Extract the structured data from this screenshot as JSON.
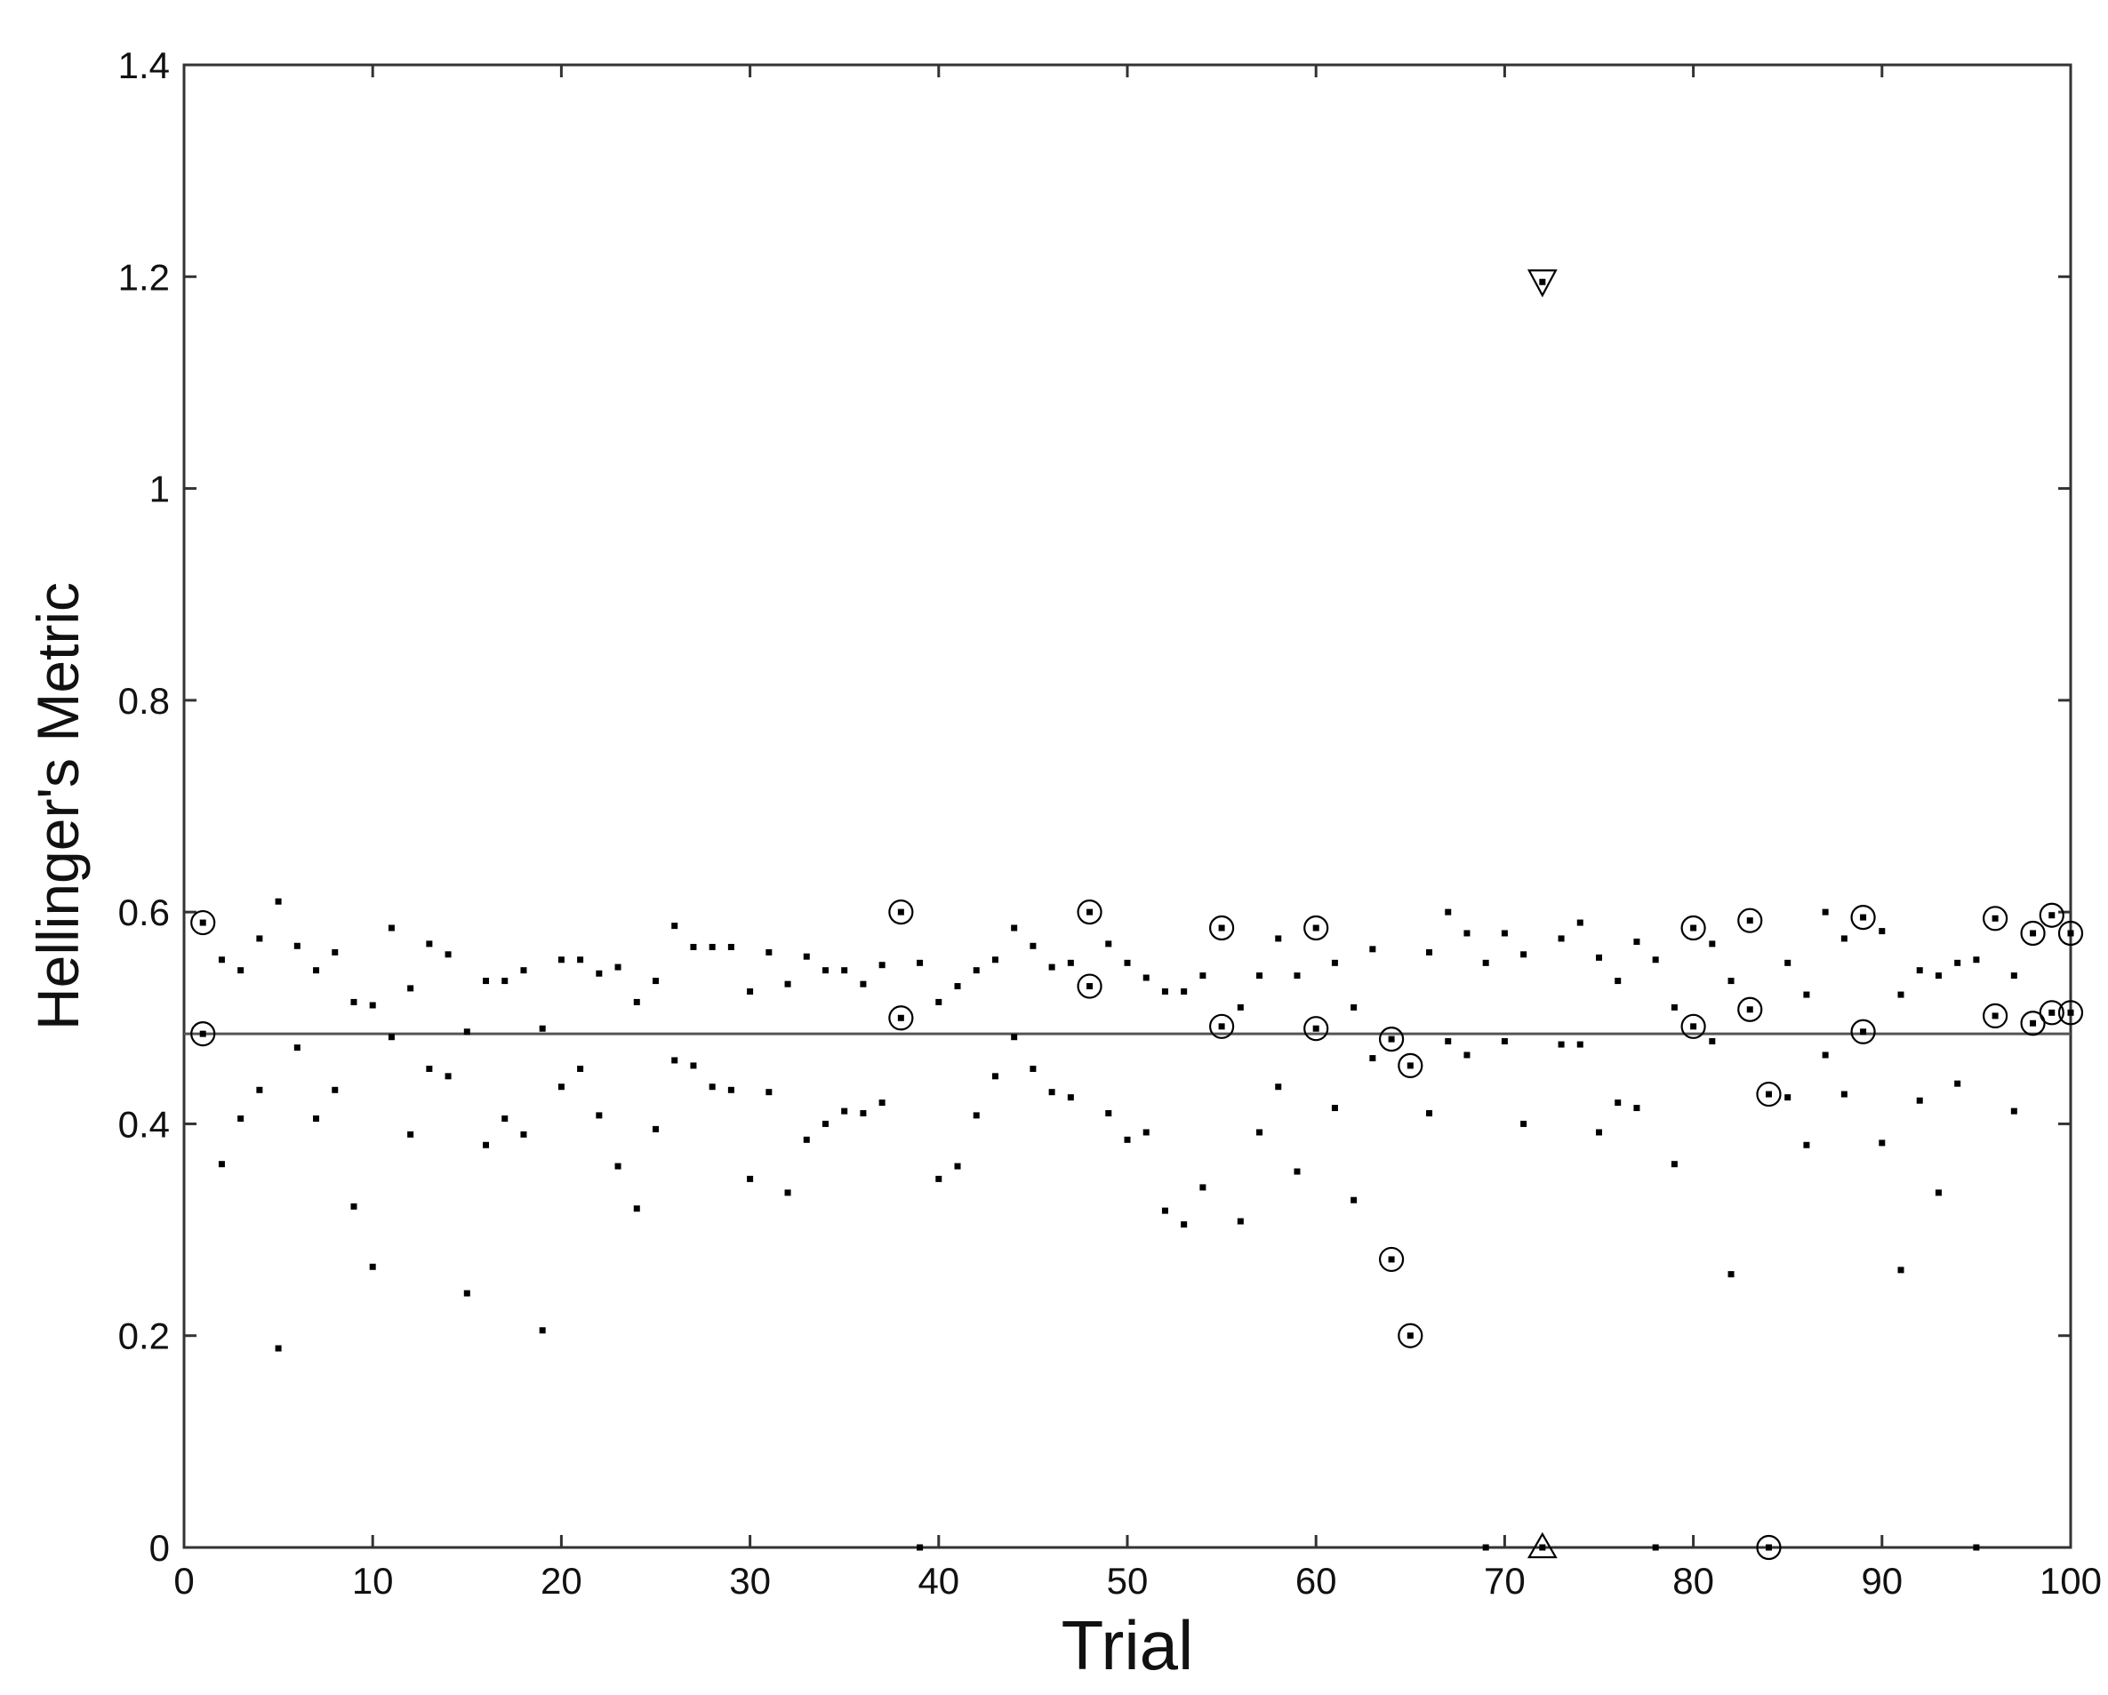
{
  "chart_data": {
    "type": "scatter",
    "title": "",
    "xlabel": "Trial",
    "ylabel": "Hellinger's Metric",
    "xlim": [
      0,
      100
    ],
    "ylim": [
      0,
      1.4
    ],
    "xticks": [
      "0",
      "10",
      "20",
      "30",
      "40",
      "50",
      "60",
      "70",
      "80",
      "90",
      "100"
    ],
    "yticks": [
      "0",
      "0.2",
      "0.4",
      "0.6",
      "0.8",
      "1",
      "1.2",
      "1.4"
    ],
    "grid": false,
    "legend": "none",
    "reference_line": {
      "y": 0.485,
      "color": "#555555"
    },
    "series": [
      {
        "marker": "dot",
        "color": "#000000",
        "points": [
          [
            1,
            0.59
          ],
          [
            1,
            0.485
          ],
          [
            2,
            0.555
          ],
          [
            2,
            0.362
          ],
          [
            3,
            0.545
          ],
          [
            3,
            0.405
          ],
          [
            4,
            0.575
          ],
          [
            4,
            0.432
          ],
          [
            5,
            0.61
          ],
          [
            5,
            0.188
          ],
          [
            6,
            0.568
          ],
          [
            6,
            0.472
          ],
          [
            7,
            0.545
          ],
          [
            7,
            0.405
          ],
          [
            8,
            0.562
          ],
          [
            8,
            0.432
          ],
          [
            9,
            0.515
          ],
          [
            9,
            0.322
          ],
          [
            10,
            0.512
          ],
          [
            10,
            0.265
          ],
          [
            11,
            0.585
          ],
          [
            11,
            0.482
          ],
          [
            12,
            0.528
          ],
          [
            12,
            0.39
          ],
          [
            13,
            0.57
          ],
          [
            13,
            0.452
          ],
          [
            14,
            0.56
          ],
          [
            14,
            0.445
          ],
          [
            15,
            0.487
          ],
          [
            15,
            0.24
          ],
          [
            16,
            0.535
          ],
          [
            16,
            0.38
          ],
          [
            17,
            0.535
          ],
          [
            17,
            0.405
          ],
          [
            18,
            0.545
          ],
          [
            18,
            0.39
          ],
          [
            19,
            0.49
          ],
          [
            19,
            0.205
          ],
          [
            20,
            0.555
          ],
          [
            20,
            0.435
          ],
          [
            21,
            0.555
          ],
          [
            21,
            0.452
          ],
          [
            22,
            0.542
          ],
          [
            22,
            0.408
          ],
          [
            23,
            0.548
          ],
          [
            23,
            0.36
          ],
          [
            24,
            0.515
          ],
          [
            24,
            0.32
          ],
          [
            25,
            0.535
          ],
          [
            25,
            0.395
          ],
          [
            26,
            0.587
          ],
          [
            26,
            0.46
          ],
          [
            27,
            0.567
          ],
          [
            27,
            0.455
          ],
          [
            28,
            0.567
          ],
          [
            28,
            0.435
          ],
          [
            29,
            0.567
          ],
          [
            29,
            0.432
          ],
          [
            30,
            0.525
          ],
          [
            30,
            0.348
          ],
          [
            31,
            0.562
          ],
          [
            31,
            0.43
          ],
          [
            32,
            0.532
          ],
          [
            32,
            0.335
          ],
          [
            33,
            0.558
          ],
          [
            33,
            0.385
          ],
          [
            34,
            0.545
          ],
          [
            34,
            0.4
          ],
          [
            35,
            0.545
          ],
          [
            35,
            0.412
          ],
          [
            36,
            0.532
          ],
          [
            36,
            0.41
          ],
          [
            37,
            0.55
          ],
          [
            37,
            0.42
          ],
          [
            38,
            0.6
          ],
          [
            38,
            0.5
          ],
          [
            39,
            0.552
          ],
          [
            39,
            0.0
          ],
          [
            40,
            0.515
          ],
          [
            40,
            0.348
          ],
          [
            41,
            0.53
          ],
          [
            41,
            0.36
          ],
          [
            42,
            0.545
          ],
          [
            42,
            0.408
          ],
          [
            43,
            0.555
          ],
          [
            43,
            0.445
          ],
          [
            44,
            0.585
          ],
          [
            44,
            0.482
          ],
          [
            45,
            0.568
          ],
          [
            45,
            0.452
          ],
          [
            46,
            0.548
          ],
          [
            46,
            0.43
          ],
          [
            47,
            0.552
          ],
          [
            47,
            0.425
          ],
          [
            48,
            0.6
          ],
          [
            48,
            0.53
          ],
          [
            49,
            0.57
          ],
          [
            49,
            0.41
          ],
          [
            50,
            0.552
          ],
          [
            50,
            0.385
          ],
          [
            51,
            0.538
          ],
          [
            51,
            0.392
          ],
          [
            52,
            0.525
          ],
          [
            52,
            0.318
          ],
          [
            53,
            0.525
          ],
          [
            53,
            0.305
          ],
          [
            54,
            0.54
          ],
          [
            54,
            0.34
          ],
          [
            55,
            0.585
          ],
          [
            55,
            0.492
          ],
          [
            56,
            0.51
          ],
          [
            56,
            0.308
          ],
          [
            57,
            0.54
          ],
          [
            57,
            0.392
          ],
          [
            58,
            0.575
          ],
          [
            58,
            0.435
          ],
          [
            59,
            0.54
          ],
          [
            59,
            0.355
          ],
          [
            60,
            0.585
          ],
          [
            60,
            0.49
          ],
          [
            61,
            0.552
          ],
          [
            61,
            0.415
          ],
          [
            62,
            0.51
          ],
          [
            62,
            0.328
          ],
          [
            63,
            0.565
          ],
          [
            63,
            0.462
          ],
          [
            64,
            0.48
          ],
          [
            64,
            0.272
          ],
          [
            65,
            0.455
          ],
          [
            65,
            0.2
          ],
          [
            66,
            0.562
          ],
          [
            66,
            0.41
          ],
          [
            67,
            0.6
          ],
          [
            67,
            0.478
          ],
          [
            68,
            0.58
          ],
          [
            68,
            0.465
          ],
          [
            69,
            0.552
          ],
          [
            69,
            0.0
          ],
          [
            70,
            0.58
          ],
          [
            70,
            0.478
          ],
          [
            71,
            0.56
          ],
          [
            71,
            0.4
          ],
          [
            72,
            1.195
          ],
          [
            72,
            0.0
          ],
          [
            73,
            0.575
          ],
          [
            73,
            0.475
          ],
          [
            74,
            0.59
          ],
          [
            74,
            0.475
          ],
          [
            75,
            0.557
          ],
          [
            75,
            0.392
          ],
          [
            76,
            0.535
          ],
          [
            76,
            0.42
          ],
          [
            77,
            0.572
          ],
          [
            77,
            0.415
          ],
          [
            78,
            0.555
          ],
          [
            78,
            0.0
          ],
          [
            79,
            0.51
          ],
          [
            79,
            0.362
          ],
          [
            80,
            0.585
          ],
          [
            80,
            0.492
          ],
          [
            81,
            0.57
          ],
          [
            81,
            0.478
          ],
          [
            82,
            0.535
          ],
          [
            82,
            0.258
          ],
          [
            83,
            0.592
          ],
          [
            83,
            0.508
          ],
          [
            84,
            0.428
          ],
          [
            84,
            0.0
          ],
          [
            85,
            0.552
          ],
          [
            85,
            0.425
          ],
          [
            86,
            0.522
          ],
          [
            86,
            0.38
          ],
          [
            87,
            0.6
          ],
          [
            87,
            0.465
          ],
          [
            88,
            0.575
          ],
          [
            88,
            0.428
          ],
          [
            89,
            0.595
          ],
          [
            89,
            0.487
          ],
          [
            90,
            0.582
          ],
          [
            90,
            0.382
          ],
          [
            91,
            0.522
          ],
          [
            91,
            0.262
          ],
          [
            92,
            0.545
          ],
          [
            92,
            0.422
          ],
          [
            93,
            0.54
          ],
          [
            93,
            0.335
          ],
          [
            94,
            0.552
          ],
          [
            94,
            0.438
          ],
          [
            95,
            0.555
          ],
          [
            95,
            0.0
          ],
          [
            96,
            0.594
          ],
          [
            96,
            0.502
          ],
          [
            97,
            0.54
          ],
          [
            97,
            0.412
          ],
          [
            98,
            0.58
          ],
          [
            98,
            0.495
          ],
          [
            99,
            0.597
          ],
          [
            99,
            0.505
          ],
          [
            100,
            0.58
          ],
          [
            100,
            0.505
          ]
        ]
      },
      {
        "marker": "circle",
        "color": "#000000",
        "points": [
          [
            1,
            0.59
          ],
          [
            1,
            0.485
          ],
          [
            38,
            0.6
          ],
          [
            38,
            0.5
          ],
          [
            48,
            0.6
          ],
          [
            48,
            0.53
          ],
          [
            55,
            0.585
          ],
          [
            55,
            0.492
          ],
          [
            60,
            0.585
          ],
          [
            60,
            0.49
          ],
          [
            64,
            0.48
          ],
          [
            64,
            0.272
          ],
          [
            65,
            0.455
          ],
          [
            65,
            0.2
          ],
          [
            80,
            0.585
          ],
          [
            80,
            0.492
          ],
          [
            83,
            0.592
          ],
          [
            83,
            0.508
          ],
          [
            84,
            0.428
          ],
          [
            84,
            0.0
          ],
          [
            89,
            0.595
          ],
          [
            89,
            0.487
          ],
          [
            96,
            0.594
          ],
          [
            96,
            0.502
          ],
          [
            98,
            0.58
          ],
          [
            98,
            0.495
          ],
          [
            99,
            0.597
          ],
          [
            99,
            0.505
          ],
          [
            100,
            0.58
          ],
          [
            100,
            0.505
          ]
        ]
      },
      {
        "marker": "triangle-down",
        "color": "#000000",
        "points": [
          [
            72,
            1.195
          ]
        ]
      },
      {
        "marker": "triangle-up",
        "color": "#000000",
        "points": [
          [
            72,
            0.0
          ]
        ]
      }
    ]
  }
}
